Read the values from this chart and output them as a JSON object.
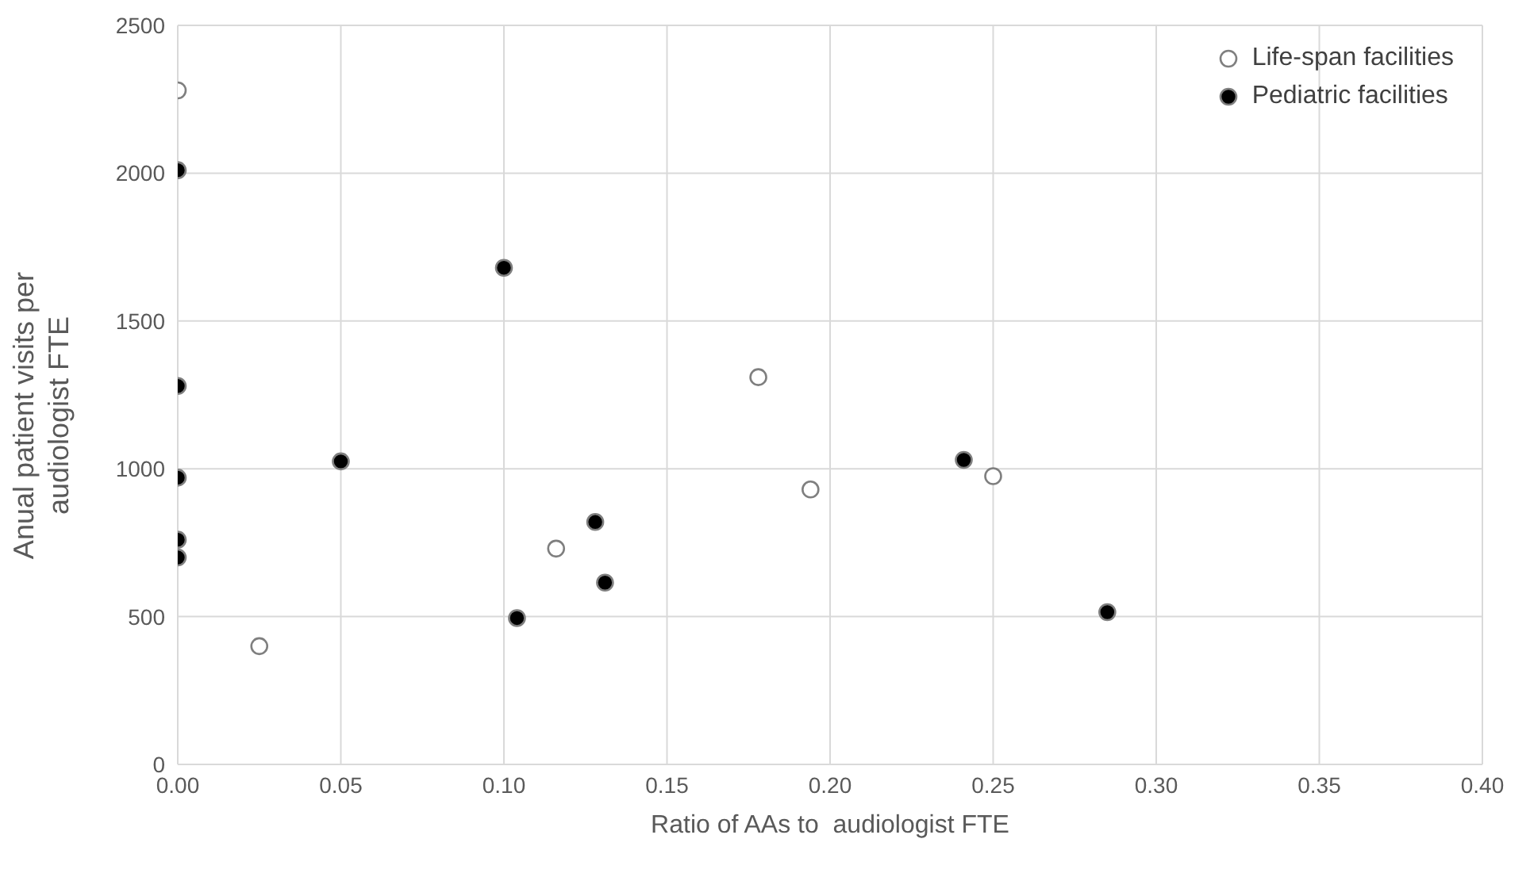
{
  "chart_data": {
    "type": "scatter",
    "xlabel": "Ratio of AAs to  audiologist FTE",
    "ylabel": "Anual patient visits per audiologist FTE",
    "xlim": [
      0,
      0.4
    ],
    "xticks": [
      {
        "value": 0,
        "label": "0.00"
      },
      {
        "value": 0.05,
        "label": "0.05"
      },
      {
        "value": 0.1,
        "label": "0.10"
      },
      {
        "value": 0.15,
        "label": "0.15"
      },
      {
        "value": 0.2,
        "label": "0.20"
      },
      {
        "value": 0.25,
        "label": "0.25"
      },
      {
        "value": 0.3,
        "label": "0.30"
      },
      {
        "value": 0.35,
        "label": "0.35"
      },
      {
        "value": 0.4,
        "label": "0.40"
      }
    ],
    "ylim": [
      0,
      2500
    ],
    "yticks": [
      0,
      500,
      1000,
      1500,
      2000,
      2500
    ],
    "grid": true,
    "legend": "top right",
    "marker": "circle",
    "series": [
      {
        "name": "Life-span facilities",
        "color": "#ffffff",
        "x": [
          0,
          0.025,
          0.116,
          0.178,
          0.194,
          0.25
        ],
        "values": [
          2280,
          400,
          730,
          1310,
          930,
          975
        ]
      },
      {
        "name": "Pediatric facilities",
        "color": "#000000",
        "x": [
          0,
          0,
          0,
          0,
          0,
          0.05,
          0.1,
          0.104,
          0.128,
          0.131,
          0.241,
          0.285
        ],
        "values": [
          2010,
          1280,
          970,
          760,
          700,
          1025,
          1680,
          495,
          820,
          615,
          1030,
          515
        ]
      }
    ]
  }
}
